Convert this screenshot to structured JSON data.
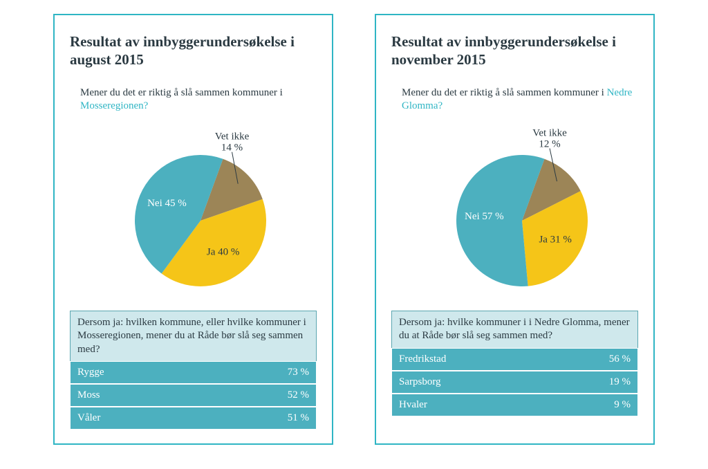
{
  "colors": {
    "border": "#2fb5c4",
    "title": "#2b3a42",
    "highlight": "#2fb5c4",
    "table_header_bg": "#cfe8ec",
    "table_row_bg": "#4cb0bf",
    "table_row_text": "#ffffff",
    "pie_ja": "#f5c518",
    "pie_nei": "#4cb0bf",
    "pie_vetikke": "#9c8557"
  },
  "typography": {
    "title_fontsize": 21,
    "body_fontsize": 15,
    "font_family": "Georgia"
  },
  "panels": [
    {
      "title": "Resultat av innbyggerundersøkelse i august 2015",
      "question_pre": "Mener du det er riktig å slå sammen kommuner i ",
      "question_hl": "Mosseregionen?",
      "pie": {
        "type": "pie",
        "radius": 95,
        "start_angle_deg": -70,
        "slices": [
          {
            "key": "vetikke",
            "label": "Vet ikke",
            "pct_label": "14 %",
            "value": 14,
            "color": "#9c8557",
            "text_color": "#2b3a42",
            "callout": true
          },
          {
            "key": "ja",
            "label": "Ja",
            "pct_label": "40 %",
            "value": 40,
            "color": "#f5c518",
            "text_color": "#2b3a42",
            "callout": false,
            "combined": "Ja 40 %"
          },
          {
            "key": "nei",
            "label": "Nei",
            "pct_label": "45 %",
            "value": 45,
            "color": "#4cb0bf",
            "text_color": "#ffffff",
            "callout": false,
            "combined": "Nei 45 %"
          }
        ]
      },
      "table": {
        "question": "Dersom ja: hvilken kommune, eller hvilke kommuner i Mosseregionen, mener du at Råde bør slå seg sammen med?",
        "rows": [
          {
            "name": "Rygge",
            "value": "73 %"
          },
          {
            "name": "Moss",
            "value": "52 %"
          },
          {
            "name": "Våler",
            "value": "51 %"
          }
        ]
      }
    },
    {
      "title": "Resultat av innbyggerundersøkelse i november 2015",
      "question_pre": "Mener du det er riktig å slå sammen kommuner i ",
      "question_hl": "Nedre Glomma?",
      "pie": {
        "type": "pie",
        "radius": 95,
        "start_angle_deg": -70,
        "slices": [
          {
            "key": "vetikke",
            "label": "Vet ikke",
            "pct_label": "12 %",
            "value": 12,
            "color": "#9c8557",
            "text_color": "#2b3a42",
            "callout": true
          },
          {
            "key": "ja",
            "label": "Ja",
            "pct_label": "31 %",
            "value": 31,
            "color": "#f5c518",
            "text_color": "#2b3a42",
            "callout": false,
            "combined": "Ja 31 %"
          },
          {
            "key": "nei",
            "label": "Nei",
            "pct_label": "57 %",
            "value": 57,
            "color": "#4cb0bf",
            "text_color": "#ffffff",
            "callout": false,
            "combined": "Nei 57 %"
          }
        ]
      },
      "table": {
        "question": "Dersom ja: hvilke kommuner i i Nedre Glomma, mener du at Råde bør slå seg sammen med?",
        "rows": [
          {
            "name": "Fredrikstad",
            "value": "56 %"
          },
          {
            "name": "Sarpsborg",
            "value": "19 %"
          },
          {
            "name": "Hvaler",
            "value": "9 %"
          }
        ]
      }
    }
  ]
}
